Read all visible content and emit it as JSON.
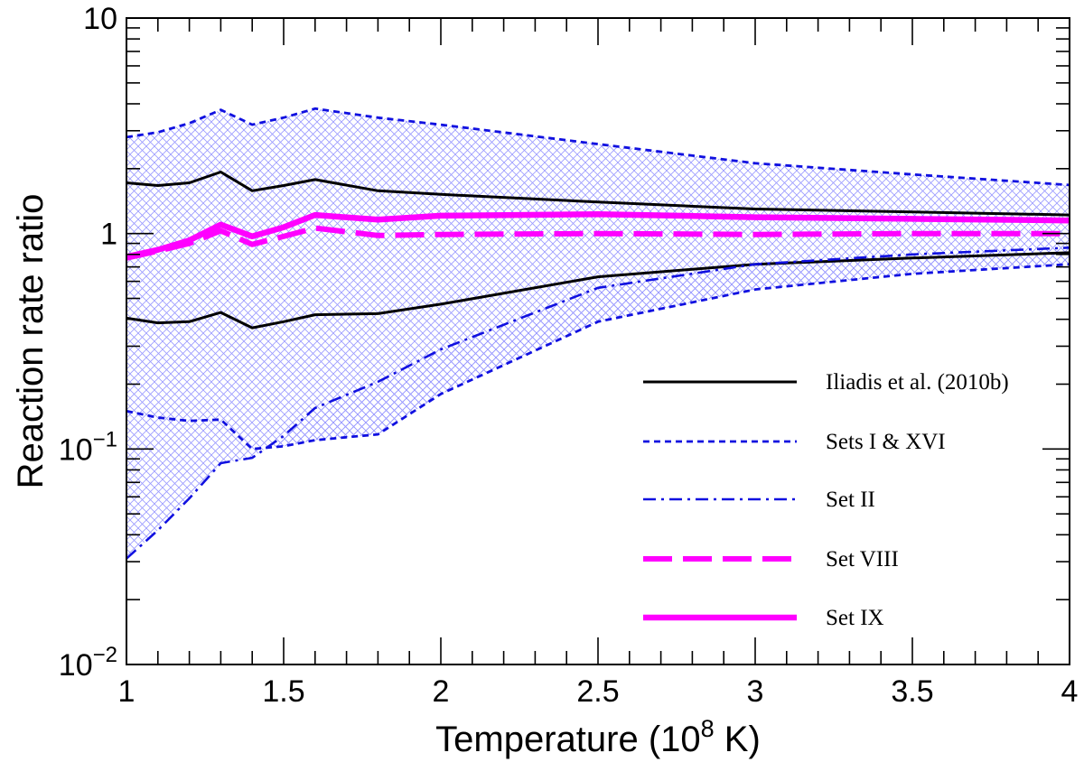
{
  "chart_data": {
    "type": "line",
    "title": "",
    "xlabel": "Temperature (10",
    "xlabel_sup": "8",
    "xlabel_unit": " K)",
    "ylabel": "Reaction rate ratio",
    "yscale": "log",
    "xlim": [
      1,
      4
    ],
    "ylim": [
      0.01,
      10
    ],
    "x_ticks": [
      {
        "value": 1,
        "label": "1"
      },
      {
        "value": 1.5,
        "label": "1.5"
      },
      {
        "value": 2,
        "label": "2"
      },
      {
        "value": 2.5,
        "label": "2.5"
      },
      {
        "value": 3,
        "label": "3"
      },
      {
        "value": 3.5,
        "label": "3.5"
      },
      {
        "value": 4,
        "label": "4"
      }
    ],
    "y_ticks": [
      {
        "value": 0.01,
        "base": "10",
        "exp": "−2"
      },
      {
        "value": 0.1,
        "base": "10",
        "exp": "−1"
      },
      {
        "value": 1,
        "base": "1",
        "exp": ""
      },
      {
        "value": 10,
        "base": "10",
        "exp": ""
      }
    ],
    "legend_position": "right",
    "colors": {
      "black": "#000000",
      "blue": "#1010e0",
      "magenta": "#ff00ff",
      "band": "#9a9aff"
    },
    "series": [
      {
        "name": "Iliadis et al. (2010b)",
        "style": "solid-black",
        "x": [
          1,
          1.1,
          1.2,
          1.3,
          1.4,
          1.5,
          1.6,
          1.8,
          2,
          2.5,
          3,
          3.5,
          4
        ],
        "upper": [
          1.72,
          1.67,
          1.72,
          1.93,
          1.58,
          1.67,
          1.78,
          1.58,
          1.52,
          1.4,
          1.3,
          1.26,
          1.22
        ],
        "lower": [
          0.405,
          0.385,
          0.39,
          0.43,
          0.365,
          0.39,
          0.42,
          0.425,
          0.47,
          0.63,
          0.72,
          0.77,
          0.815
        ]
      },
      {
        "name": "Sets I & XVI",
        "style": "dotted-blue",
        "x": [
          1,
          1.1,
          1.2,
          1.3,
          1.4,
          1.5,
          1.6,
          1.8,
          2,
          2.5,
          3,
          3.5,
          4
        ],
        "upper": [
          2.8,
          2.95,
          3.25,
          3.75,
          3.2,
          3.45,
          3.8,
          3.45,
          3.2,
          2.6,
          2.12,
          1.88,
          1.68
        ],
        "lower": [
          0.15,
          0.14,
          0.135,
          0.137,
          0.1,
          0.103,
          0.11,
          0.117,
          0.18,
          0.39,
          0.55,
          0.65,
          0.72
        ]
      },
      {
        "name": "Set II",
        "style": "dashdot-blue",
        "x": [
          1,
          1.1,
          1.2,
          1.3,
          1.4,
          1.5,
          1.6,
          1.8,
          2,
          2.5,
          3,
          3.5,
          4
        ],
        "values": [
          0.031,
          0.042,
          0.059,
          0.086,
          0.091,
          0.115,
          0.155,
          0.205,
          0.29,
          0.56,
          0.72,
          0.8,
          0.86
        ]
      },
      {
        "name": "Set VIII",
        "style": "dashed-magenta",
        "x": [
          1,
          1.1,
          1.2,
          1.3,
          1.4,
          1.5,
          1.6,
          1.8,
          2,
          2.5,
          3,
          3.5,
          4
        ],
        "values": [
          0.77,
          0.83,
          0.9,
          1.03,
          0.89,
          0.97,
          1.06,
          0.98,
          0.99,
          1.0,
          0.99,
          1.0,
          1.0
        ]
      },
      {
        "name": "Set IX",
        "style": "solid-magenta",
        "x": [
          1,
          1.1,
          1.2,
          1.3,
          1.4,
          1.5,
          1.6,
          1.8,
          2,
          2.5,
          3,
          3.5,
          4
        ],
        "values": [
          0.78,
          0.84,
          0.93,
          1.1,
          0.97,
          1.07,
          1.22,
          1.16,
          1.21,
          1.23,
          1.19,
          1.17,
          1.15
        ]
      }
    ]
  }
}
